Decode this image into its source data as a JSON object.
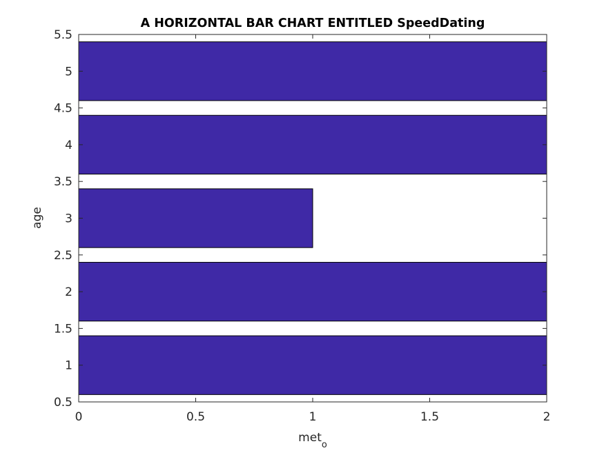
{
  "chart_data": {
    "type": "bar",
    "orientation": "horizontal",
    "title": "A HORIZONTAL BAR CHART ENTITLED SpeedDating",
    "xlabel": "met",
    "xlabel_subscript": "o",
    "ylabel": "age",
    "categories": [
      1,
      2,
      3,
      4,
      5
    ],
    "values": [
      2,
      2,
      1,
      2,
      2
    ],
    "xlim": [
      0,
      2
    ],
    "ylim": [
      0.5,
      5.5
    ],
    "xticks": [
      "0",
      "0.5",
      "1",
      "1.5",
      "2"
    ],
    "yticks": [
      "0.5",
      "1",
      "1.5",
      "2",
      "2.5",
      "3",
      "3.5",
      "4",
      "4.5",
      "5",
      "5.5"
    ],
    "bar_color": "#3f29a6",
    "grid": false,
    "legend": "none"
  }
}
